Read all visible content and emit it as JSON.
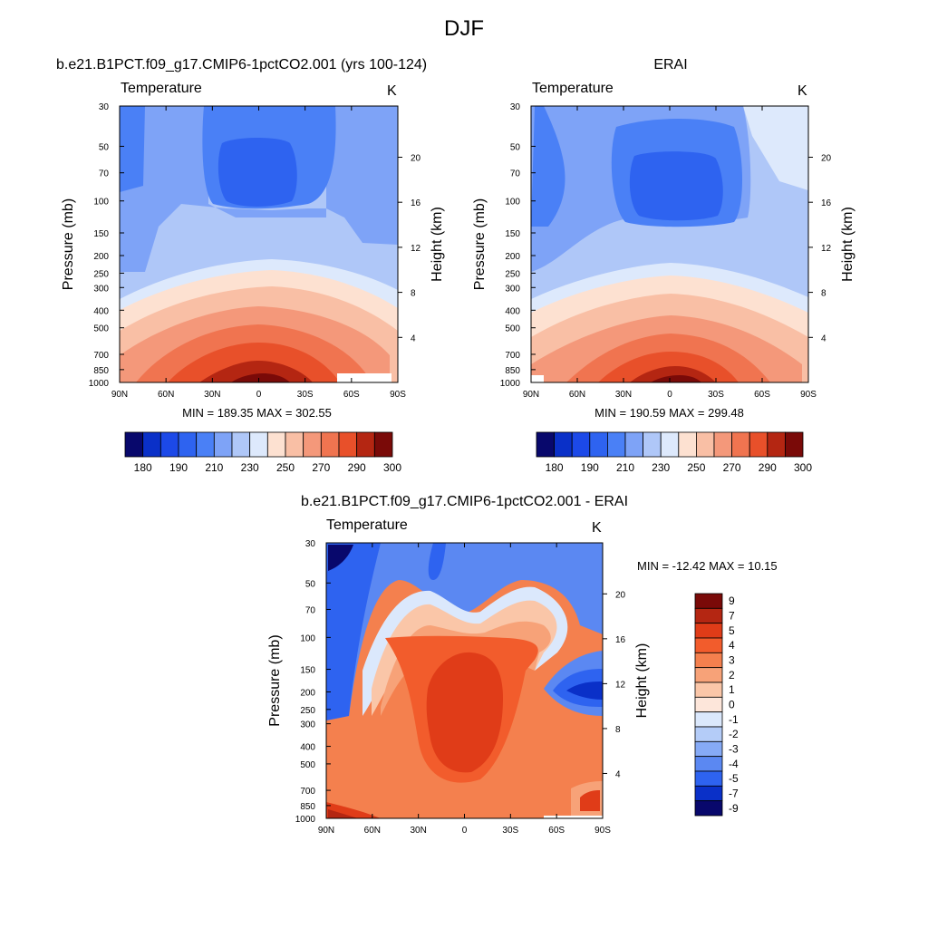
{
  "figure": {
    "title": "DJF"
  },
  "panels": [
    {
      "id": "model",
      "title": "b.e21.B1PCT.f09_g17.CMIP6-1pctCO2.001 (yrs 100-124)",
      "variable": "Temperature",
      "units": "K",
      "minmax": "MIN = 189.35  MAX = 302.55"
    },
    {
      "id": "obs",
      "title": "ERAI",
      "variable": "Temperature",
      "units": "K",
      "minmax": "MIN = 190.59  MAX = 299.48"
    },
    {
      "id": "diff",
      "title": "b.e21.B1PCT.f09_g17.CMIP6-1pctCO2.001 - ERAI",
      "variable": "Temperature",
      "units": "K",
      "minmax": "MIN = -12.42  MAX =  10.15"
    }
  ],
  "chart_data": [
    {
      "type": "heatmap",
      "title": "b.e21.B1PCT.f09_g17.CMIP6-1pctCO2.001 (yrs 100-124)",
      "variable": "Temperature",
      "units": "K",
      "xlabel": "",
      "ylabel": "Pressure (mb)",
      "y2label": "Height (km)",
      "x_ticks": [
        "90N",
        "60N",
        "30N",
        "0",
        "30S",
        "60S",
        "90S"
      ],
      "y_ticks": [
        "30",
        "50",
        "70",
        "100",
        "150",
        "200",
        "250",
        "300",
        "400",
        "500",
        "700",
        "850",
        "1000"
      ],
      "y2_ticks": [
        "20",
        "16",
        "12",
        "8",
        "4"
      ],
      "ylim": [
        1000,
        30
      ],
      "log_y": true,
      "min": 189.35,
      "max": 302.55,
      "colorbar_levels": [
        180,
        185,
        190,
        200,
        210,
        220,
        230,
        240,
        250,
        260,
        270,
        280,
        290,
        295,
        300
      ],
      "colorbar_labels": [
        "180",
        "190",
        "210",
        "230",
        "250",
        "270",
        "290",
        "300"
      ]
    },
    {
      "type": "heatmap",
      "title": "ERAI",
      "variable": "Temperature",
      "units": "K",
      "xlabel": "",
      "ylabel": "Pressure (mb)",
      "y2label": "Height (km)",
      "x_ticks": [
        "90N",
        "60N",
        "30N",
        "0",
        "30S",
        "60S",
        "90S"
      ],
      "y_ticks": [
        "30",
        "50",
        "70",
        "100",
        "150",
        "200",
        "250",
        "300",
        "400",
        "500",
        "700",
        "850",
        "1000"
      ],
      "y2_ticks": [
        "20",
        "16",
        "12",
        "8",
        "4"
      ],
      "ylim": [
        1000,
        30
      ],
      "log_y": true,
      "min": 190.59,
      "max": 299.48,
      "colorbar_levels": [
        180,
        185,
        190,
        200,
        210,
        220,
        230,
        240,
        250,
        260,
        270,
        280,
        290,
        295,
        300
      ],
      "colorbar_labels": [
        "180",
        "190",
        "210",
        "230",
        "250",
        "270",
        "290",
        "300"
      ]
    },
    {
      "type": "heatmap",
      "title": "b.e21.B1PCT.f09_g17.CMIP6-1pctCO2.001 - ERAI",
      "variable": "Temperature",
      "units": "K",
      "xlabel": "",
      "ylabel": "Pressure (mb)",
      "y2label": "Height (km)",
      "x_ticks": [
        "90N",
        "60N",
        "30N",
        "0",
        "30S",
        "60S",
        "90S"
      ],
      "y_ticks": [
        "30",
        "50",
        "70",
        "100",
        "150",
        "200",
        "250",
        "300",
        "400",
        "500",
        "700",
        "850",
        "1000"
      ],
      "y2_ticks": [
        "20",
        "16",
        "12",
        "8",
        "4"
      ],
      "ylim": [
        1000,
        30
      ],
      "log_y": true,
      "min": -12.42,
      "max": 10.15,
      "colorbar_levels": [
        9,
        7,
        5,
        4,
        3,
        2,
        1,
        0,
        -1,
        -2,
        -3,
        -4,
        -5,
        -7,
        -9
      ],
      "colorbar_labels": [
        "9",
        "7",
        "5",
        "4",
        "3",
        "2",
        "1",
        "0",
        "-1",
        "-2",
        "-3",
        "-4",
        "-5",
        "-7",
        "-9"
      ]
    }
  ],
  "colors": {
    "abs_scale": [
      "#08086c",
      "#0a30c8",
      "#1c49e8",
      "#2e63f0",
      "#4a80f6",
      "#7ea3f7",
      "#afc7f8",
      "#dde9fc",
      "#fde1d1",
      "#f9bfa5",
      "#f4987a",
      "#f07450",
      "#e8502a",
      "#b42612",
      "#7a0a08"
    ],
    "diff_scale": [
      "#7a0a08",
      "#b42612",
      "#e03c18",
      "#f25c2c",
      "#f4804e",
      "#f7a278",
      "#fac6a8",
      "#fde6da",
      "#dbe8fc",
      "#b4ccf8",
      "#86aaf6",
      "#5b88f2",
      "#2e63f0",
      "#0a30c8",
      "#08086c"
    ]
  }
}
